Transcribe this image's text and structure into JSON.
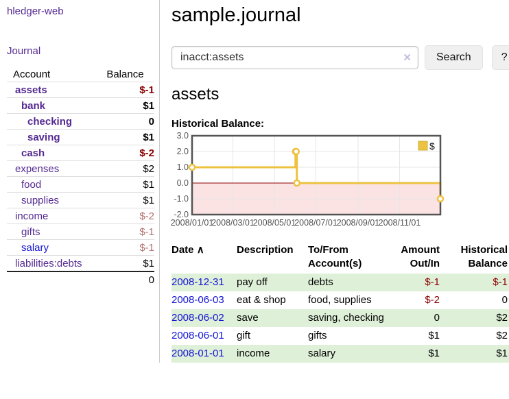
{
  "colors": {
    "link_purple": "#552a92",
    "link_blue": "#1414d6",
    "negative_strong": "#8b0000",
    "negative_soft": "#b2716f",
    "row_stripe_green": "#dff0d8",
    "chart_line": "#edc240",
    "chart_negative_region": "#fbe3e3",
    "chart_zero_line": "#8b0000",
    "chart_grid": "#e6e6e6",
    "chart_border": "#545454",
    "chart_tick_text": "#545454"
  },
  "sidebar": {
    "app_title": "hledger-web",
    "journal_link": "Journal",
    "table": {
      "account_header": "Account",
      "balance_header": "Balance"
    },
    "accounts": [
      {
        "label": "assets",
        "depth": 1,
        "bold": true,
        "balance": "$-1",
        "balance_class": "neg-strong",
        "link_class": ""
      },
      {
        "label": "bank",
        "depth": 2,
        "bold": true,
        "balance": "$1",
        "balance_class": "",
        "link_class": ""
      },
      {
        "label": "checking",
        "depth": 3,
        "bold": true,
        "balance": "0",
        "balance_class": "",
        "link_class": ""
      },
      {
        "label": "saving",
        "depth": 3,
        "bold": true,
        "balance": "$1",
        "balance_class": "",
        "link_class": ""
      },
      {
        "label": "cash",
        "depth": 2,
        "bold": true,
        "balance": "$-2",
        "balance_class": "neg-strong",
        "link_class": ""
      },
      {
        "label": "expenses",
        "depth": 1,
        "bold": false,
        "balance": "$2",
        "balance_class": "",
        "link_class": ""
      },
      {
        "label": "food",
        "depth": 2,
        "bold": false,
        "balance": "$1",
        "balance_class": "",
        "link_class": ""
      },
      {
        "label": "supplies",
        "depth": 2,
        "bold": false,
        "balance": "$1",
        "balance_class": "",
        "link_class": ""
      },
      {
        "label": "income",
        "depth": 1,
        "bold": false,
        "balance": "$-2",
        "balance_class": "neg-soft",
        "link_class": ""
      },
      {
        "label": "gifts",
        "depth": 2,
        "bold": false,
        "balance": "$-1",
        "balance_class": "neg-soft",
        "link_class": ""
      },
      {
        "label": "salary",
        "depth": 2,
        "bold": false,
        "balance": "$-1",
        "balance_class": "neg-soft",
        "link_class": "blue"
      },
      {
        "label": "liabilities:debts",
        "depth": 1,
        "bold": false,
        "balance": "$1",
        "balance_class": "",
        "link_class": ""
      }
    ],
    "total": "0"
  },
  "header": {
    "title": "sample.journal"
  },
  "search": {
    "value": "inacct:assets",
    "clear_icon": "✕",
    "search_button": "Search",
    "help_button": "?"
  },
  "section": {
    "heading": "assets",
    "chart_label": "Historical Balance:"
  },
  "chart_data": {
    "type": "line",
    "step": true,
    "title": "Historical Balance",
    "legend": [
      {
        "name": "$",
        "color": "#edc240"
      }
    ],
    "legend_position": "top-right",
    "x_range": [
      "2008-01-01",
      "2008-12-31"
    ],
    "ylim": [
      -2,
      3
    ],
    "grid": true,
    "yticks": [
      {
        "v": 3,
        "label": "3.0"
      },
      {
        "v": 2,
        "label": "2.0"
      },
      {
        "v": 1,
        "label": "1.0"
      },
      {
        "v": 0,
        "label": "0.0"
      },
      {
        "v": -1,
        "label": "-1.0"
      },
      {
        "v": -2,
        "label": "-2.0"
      }
    ],
    "xticks": [
      {
        "date": "2008-01-01",
        "label": "2008/01/01"
      },
      {
        "date": "2008-03-01",
        "label": "2008/03/01"
      },
      {
        "date": "2008-05-01",
        "label": "2008/05/01"
      },
      {
        "date": "2008-07-01",
        "label": "2008/07/01"
      },
      {
        "date": "2008-09-01",
        "label": "2008/09/01"
      },
      {
        "date": "2008-11-01",
        "label": "2008/11/01"
      }
    ],
    "points": [
      {
        "x": "2008-01-01",
        "y": 1
      },
      {
        "x": "2008-06-01",
        "y": 2
      },
      {
        "x": "2008-06-02",
        "y": 2
      },
      {
        "x": "2008-06-03",
        "y": 0
      },
      {
        "x": "2008-12-31",
        "y": -1
      }
    ],
    "negative_region_shaded": true
  },
  "register": {
    "headers": {
      "date": "Date",
      "sort_icon": "∧",
      "description": [
        "Description"
      ],
      "accounts": [
        "To/From",
        "Account(s)"
      ],
      "amount": [
        "Amount",
        "Out/In"
      ],
      "balance": [
        "Historical",
        "Balance"
      ]
    },
    "rows": [
      {
        "date": "2008-12-31",
        "description": "pay off",
        "accounts": "debts",
        "amount": "$-1",
        "amount_neg": true,
        "balance": "$-1",
        "balance_neg": true
      },
      {
        "date": "2008-06-03",
        "description": "eat & shop",
        "accounts": "food, supplies",
        "amount": "$-2",
        "amount_neg": true,
        "balance": "0",
        "balance_neg": false
      },
      {
        "date": "2008-06-02",
        "description": "save",
        "accounts": "saving, checking",
        "amount": "0",
        "amount_neg": false,
        "balance": "$2",
        "balance_neg": false
      },
      {
        "date": "2008-06-01",
        "description": "gift",
        "accounts": "gifts",
        "amount": "$1",
        "amount_neg": false,
        "balance": "$2",
        "balance_neg": false
      },
      {
        "date": "2008-01-01",
        "description": "income",
        "accounts": "salary",
        "amount": "$1",
        "amount_neg": false,
        "balance": "$1",
        "balance_neg": false
      }
    ]
  }
}
